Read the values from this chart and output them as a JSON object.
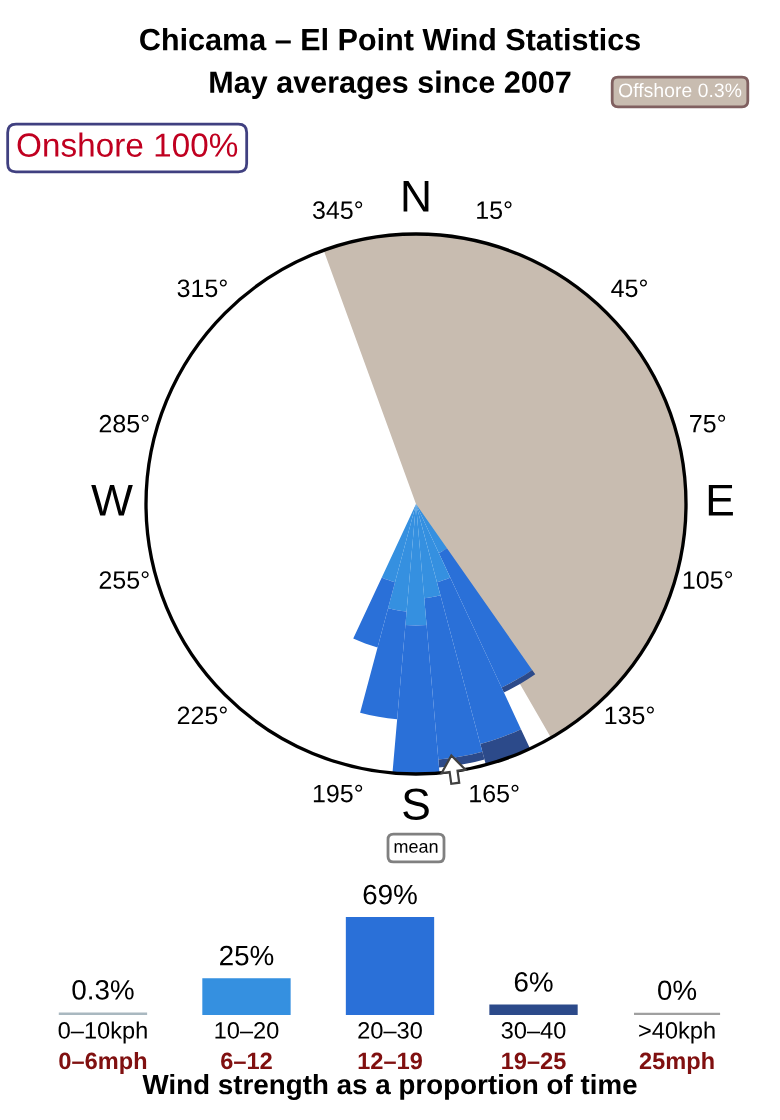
{
  "chart_data": [
    {
      "type": "other",
      "title": "Chicama – El Point Wind Statistics",
      "subtitle": "May averages since 2007",
      "annotations": [
        "Onshore 100%",
        "Offshore 0.3%",
        "mean",
        "N",
        "15°",
        "45°",
        "75°",
        "E",
        "105°",
        "135°",
        "165°",
        "S",
        "195°",
        "225°",
        "255°",
        "W",
        "285°",
        "315°",
        "345°"
      ]
    },
    {
      "type": "bar",
      "categories": [
        "0–10kph",
        "10–20",
        "20–30",
        "30–40",
        ">40kph"
      ],
      "values": [
        0.3,
        25,
        69,
        6,
        0
      ],
      "colors": [
        "#a9b8c0",
        "#3590e0",
        "#2a70d8",
        "#2c4a8a",
        "#a0a0a0"
      ],
      "value_labels": [
        "0.3%",
        "25%",
        "69%",
        "6%",
        "0%"
      ],
      "xlabel": "Wind strength as a proportion of time",
      "annotations": [
        "0–6mph",
        "6–12",
        "12–19",
        "19–25",
        "25mph"
      ]
    }
  ]
}
